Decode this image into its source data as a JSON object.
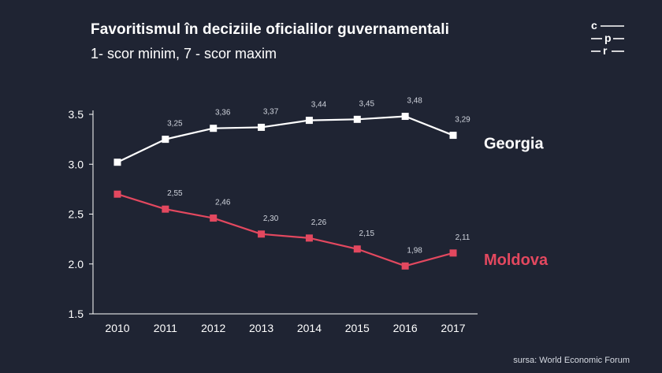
{
  "title": "Favoritismul în deciziile oficialilor guvernamentali",
  "subtitle": "1- scor minim, 7 - scor maxim",
  "source": "sursa: World Economic Forum",
  "logo": {
    "row1": "c",
    "row2": "p",
    "row3": "r"
  },
  "colors": {
    "background": "#1f2433",
    "georgia": "#ffffff",
    "moldova": "#e3485f",
    "axis": "#ffffff",
    "value_label": "#cfd3dc"
  },
  "chart_data": {
    "type": "line",
    "x": [
      "2010",
      "2011",
      "2012",
      "2013",
      "2014",
      "2015",
      "2016",
      "2017"
    ],
    "ylim": [
      1.5,
      3.5
    ],
    "yticks": [
      "1.5",
      "2.0",
      "2.5",
      "3.0",
      "3.5"
    ],
    "grid": false,
    "legend": "series labels at right end of lines",
    "series": [
      {
        "name": "Georgia",
        "color": "#ffffff",
        "values": [
          3.02,
          3.25,
          3.36,
          3.37,
          3.44,
          3.45,
          3.48,
          3.29
        ],
        "labels": [
          "",
          "3,25",
          "3,36",
          "3,37",
          "3,44",
          "3,45",
          "3,48",
          "3,29"
        ]
      },
      {
        "name": "Moldova",
        "color": "#e3485f",
        "values": [
          2.7,
          2.55,
          2.46,
          2.3,
          2.26,
          2.15,
          1.98,
          2.11
        ],
        "labels": [
          "",
          "2,55",
          "2,46",
          "2,30",
          "2,26",
          "2,15",
          "1,98",
          "2,11"
        ]
      }
    ]
  }
}
